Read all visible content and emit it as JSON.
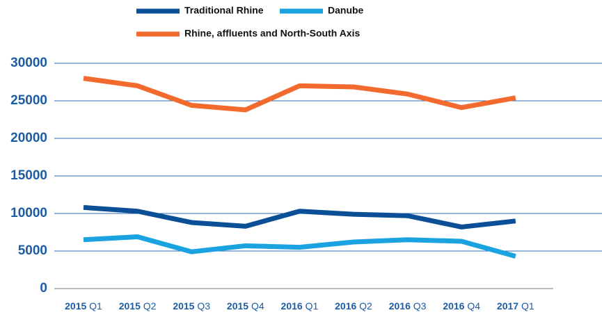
{
  "chart_data": {
    "type": "line",
    "categories": [
      "2015 Q1",
      "2015 Q2",
      "2015 Q3",
      "2015 Q4",
      "2016 Q1",
      "2016 Q2",
      "2016 Q3",
      "2016 Q4",
      "2017 Q1"
    ],
    "series": [
      {
        "name": "Traditional Rhine",
        "color": "#0b4f96",
        "values": [
          10800,
          10300,
          8800,
          8300,
          10300,
          9900,
          9700,
          8200,
          9000
        ]
      },
      {
        "name": "Danube",
        "color": "#1aa3e0",
        "values": [
          6500,
          6900,
          4900,
          5700,
          5500,
          6200,
          6500,
          6300,
          4300
        ]
      },
      {
        "name": "Rhine, affluents and North-South Axis",
        "color": "#f26a2e",
        "values": [
          28000,
          27000,
          24400,
          23800,
          27000,
          26850,
          25900,
          24100,
          25400
        ]
      }
    ],
    "ylim": [
      0,
      30000
    ],
    "yticks": [
      0,
      5000,
      10000,
      15000,
      20000,
      25000,
      30000
    ],
    "grid": true
  }
}
